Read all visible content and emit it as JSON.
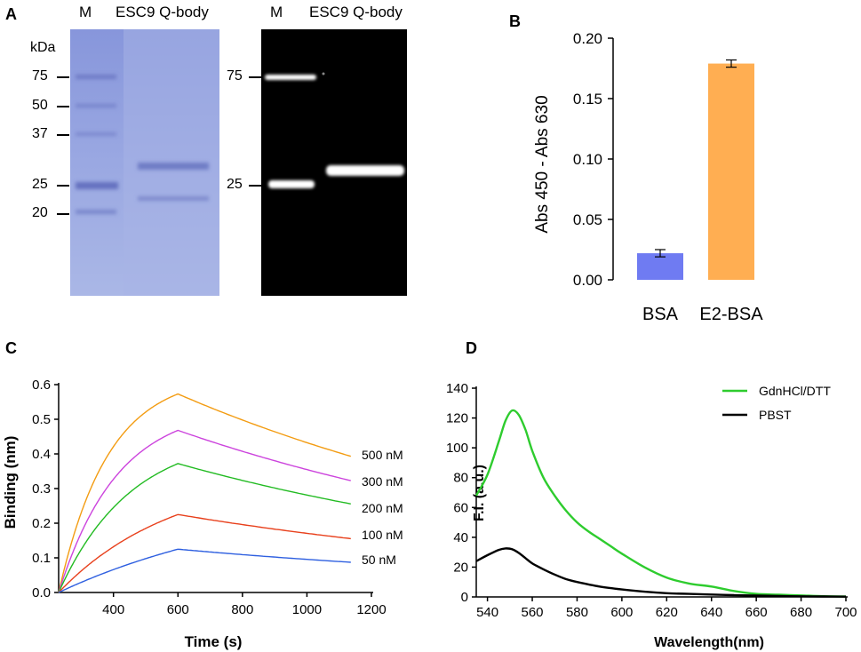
{
  "panel_a": {
    "letter": "A",
    "stain_lane_labels": {
      "marker": "M",
      "sample": "ESC9 Q-body"
    },
    "fluor_lane_labels": {
      "marker": "M",
      "sample": "ESC9 Q-body"
    },
    "unit": "kDa",
    "stain_markers": [
      "75",
      "50",
      "37",
      "25",
      "20"
    ],
    "fluor_markers": [
      "75",
      "25"
    ],
    "stain_bg_color": "#97a6e0",
    "fluor_bg_color": "#000000"
  },
  "panel_b": {
    "letter": "B",
    "chart_data": {
      "type": "bar",
      "categories": [
        "BSA",
        "E2-BSA"
      ],
      "values": [
        0.022,
        0.179
      ],
      "errors": [
        0.003,
        0.003
      ],
      "colors": [
        "#6f7bf2",
        "#ffae52"
      ],
      "ylabel": "Abs 450 - Abs 630",
      "ylim": [
        0,
        0.2
      ],
      "yticks": [
        "0.00",
        "0.05",
        "0.10",
        "0.15",
        "0.20"
      ],
      "ytick_values": [
        0,
        0.05,
        0.1,
        0.15,
        0.2
      ]
    }
  },
  "panel_c": {
    "letter": "C",
    "chart_data": {
      "type": "line",
      "xlabel": "Time (s)",
      "ylabel": "Binding (nm)",
      "xlim": [
        230,
        1200
      ],
      "ylim": [
        0,
        0.6
      ],
      "xticks": [
        400,
        600,
        800,
        1000,
        1200
      ],
      "yticks": [
        "0.0",
        "0.1",
        "0.2",
        "0.3",
        "0.4",
        "0.5",
        "0.6"
      ],
      "ytick_values": [
        0,
        0.1,
        0.2,
        0.3,
        0.4,
        0.5,
        0.6
      ],
      "assoc_start": 230,
      "dissoc_start": 600,
      "end": 1140,
      "series": [
        {
          "name": "500 nM",
          "color": "#f39c12",
          "peak": 0.573,
          "final": 0.392,
          "k": 0.0065
        },
        {
          "name": "300 nM",
          "color": "#cc44dd",
          "peak": 0.468,
          "final": 0.322,
          "k": 0.0055
        },
        {
          "name": "200 nM",
          "color": "#22bb22",
          "peak": 0.372,
          "final": 0.255,
          "k": 0.0045
        },
        {
          "name": "100 nM",
          "color": "#e8401c",
          "peak": 0.225,
          "final": 0.155,
          "k": 0.0028
        },
        {
          "name": "50 nM",
          "color": "#2e5fe0",
          "peak": 0.125,
          "final": 0.087,
          "k": 0.0015
        }
      ]
    }
  },
  "panel_d": {
    "letter": "D",
    "chart_data": {
      "type": "line",
      "xlabel": "Wavelength(nm)",
      "ylabel": "F.I. (a.u.)",
      "xlim": [
        535,
        700
      ],
      "ylim": [
        0,
        140
      ],
      "xticks": [
        540,
        560,
        580,
        600,
        620,
        640,
        660,
        680,
        700
      ],
      "yticks": [
        0,
        20,
        40,
        60,
        80,
        100,
        120,
        140
      ],
      "series": [
        {
          "name": "GdnHCl/DTT",
          "color": "#2ecc2e",
          "x": [
            535,
            540,
            545,
            548,
            551,
            554,
            557,
            560,
            565,
            570,
            575,
            580,
            585,
            590,
            595,
            600,
            610,
            620,
            630,
            640,
            650,
            660,
            670,
            680,
            690,
            700
          ],
          "y": [
            68,
            82,
            104,
            118,
            125,
            122,
            112,
            98,
            80,
            68,
            58,
            50,
            44,
            39,
            34,
            29,
            20,
            13,
            9,
            7,
            4,
            2,
            1.5,
            1,
            0.5,
            0.3
          ]
        },
        {
          "name": "PBST",
          "color": "#000000",
          "x": [
            535,
            540,
            545,
            548,
            551,
            554,
            557,
            560,
            565,
            570,
            575,
            580,
            590,
            600,
            610,
            620,
            630,
            640,
            650,
            660,
            670,
            680,
            690,
            700
          ],
          "y": [
            24,
            28,
            31.5,
            32.5,
            32,
            29.5,
            26,
            22.5,
            18.5,
            15,
            12,
            10,
            7,
            5,
            3.5,
            2.5,
            2,
            1.6,
            1.2,
            0.9,
            0.6,
            0.4,
            0.3,
            0.2
          ]
        }
      ]
    }
  }
}
